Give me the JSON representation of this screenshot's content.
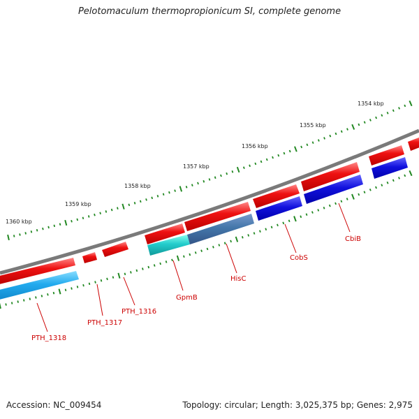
{
  "title": "Pelotomaculum thermopropionicum SI, complete genome",
  "accession_text": "Accession: NC_009454",
  "summary_text": "Topology: circular; Length: 3,025,375 bp; Genes: 2,975",
  "scale_marks": [
    {
      "label": "1354 kbp"
    },
    {
      "label": "1355 kbp"
    },
    {
      "label": "1356 kbp"
    },
    {
      "label": "1357 kbp"
    },
    {
      "label": "1358 kbp"
    },
    {
      "label": "1359 kbp"
    },
    {
      "label": "1360 kbp"
    }
  ],
  "gene_labels": [
    {
      "name": "CbiB"
    },
    {
      "name": "CobS"
    },
    {
      "name": "HisC"
    },
    {
      "name": "GpmB"
    },
    {
      "name": "PTH_1316"
    },
    {
      "name": "PTH_1317"
    },
    {
      "name": "PTH_1318"
    }
  ],
  "colors": {
    "backbone": "#7a7a7a",
    "forward_gene": "#ee1111",
    "cog_blue": "#1111dd",
    "cog_light_blue": "#22aaee",
    "cog_cyan": "#22cccc",
    "cog_steel": "#4477aa",
    "tick": "#228822",
    "label": "#cc0000"
  }
}
